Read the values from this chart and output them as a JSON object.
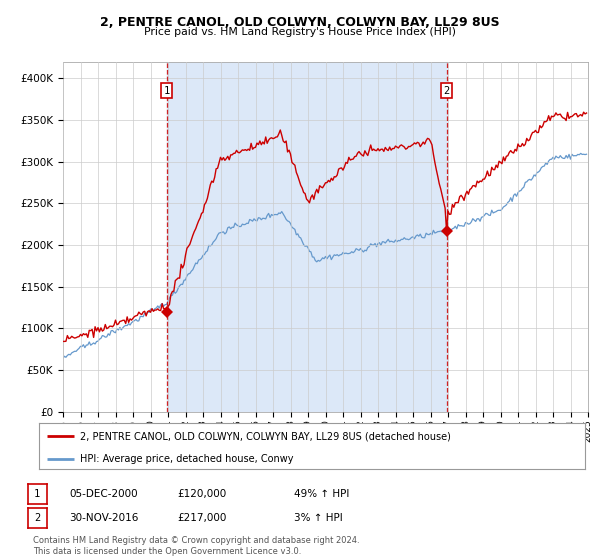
{
  "title1": "2, PENTRE CANOL, OLD COLWYN, COLWYN BAY, LL29 8US",
  "title2": "Price paid vs. HM Land Registry's House Price Index (HPI)",
  "legend_red": "2, PENTRE CANOL, OLD COLWYN, COLWYN BAY, LL29 8US (detached house)",
  "legend_blue": "HPI: Average price, detached house, Conwy",
  "label1_date": "05-DEC-2000",
  "label1_price": "£120,000",
  "label1_hpi": "49% ↑ HPI",
  "label2_date": "30-NOV-2016",
  "label2_price": "£217,000",
  "label2_hpi": "3% ↑ HPI",
  "footer1": "Contains HM Land Registry data © Crown copyright and database right 2024.",
  "footer2": "This data is licensed under the Open Government Licence v3.0.",
  "year_start": 1995,
  "year_end": 2025,
  "ylim_max": 420000,
  "sale1_year": 2000.917,
  "sale1_price": 120000,
  "sale2_year": 2016.917,
  "sale2_price": 217000,
  "red_color": "#cc0000",
  "blue_color": "#6699cc",
  "shade_color": "#dce8f8",
  "grid_color": "#cccccc"
}
